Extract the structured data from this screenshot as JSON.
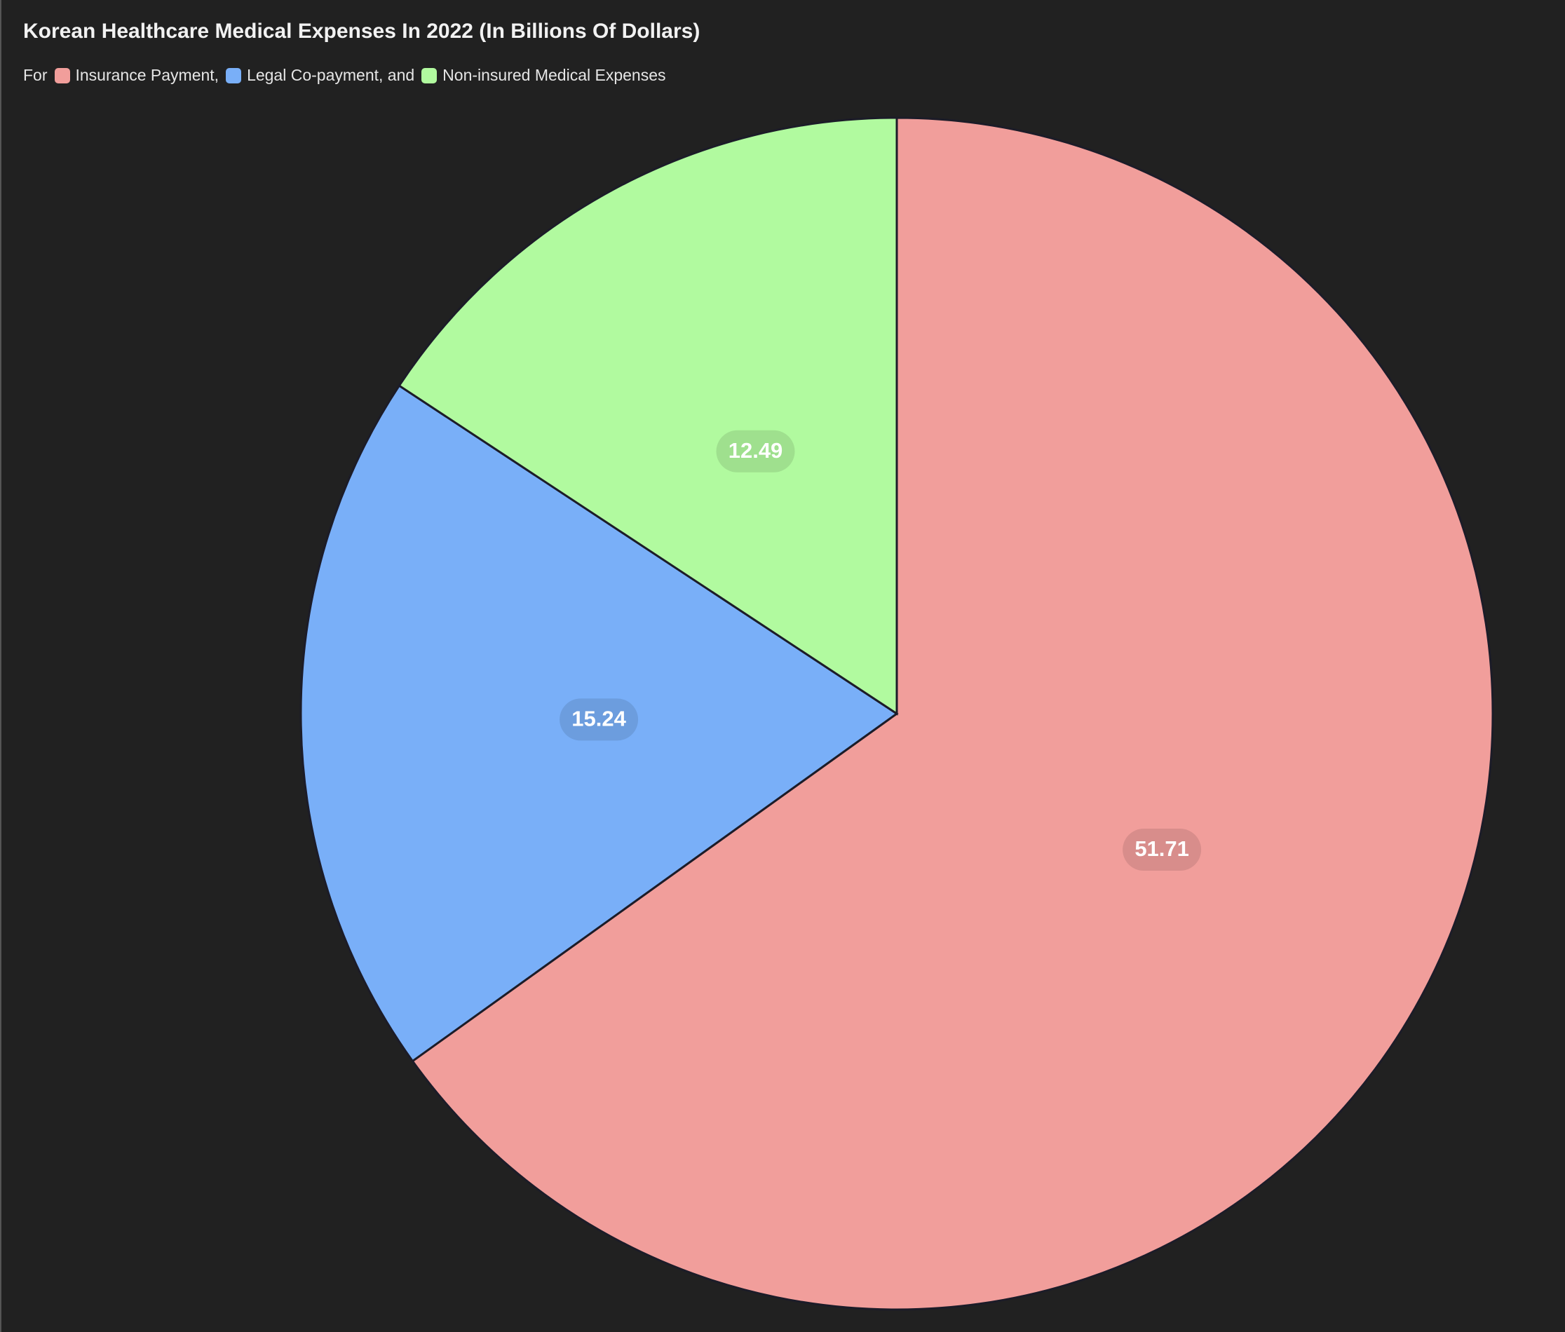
{
  "chart_data": {
    "type": "pie",
    "title": "Korean Healthcare Medical Expenses In 2022 (In Billions Of Dollars)",
    "legend_text": {
      "prefix": "For",
      "separators": [
        ",",
        ", and"
      ]
    },
    "categories": [
      "Insurance Payment",
      "Legal Co-payment",
      "Non-insured Medical Expenses"
    ],
    "values": [
      51.71,
      15.24,
      12.49
    ],
    "colors": [
      "#f19e9b",
      "#79aff8",
      "#b1fa9f"
    ]
  }
}
